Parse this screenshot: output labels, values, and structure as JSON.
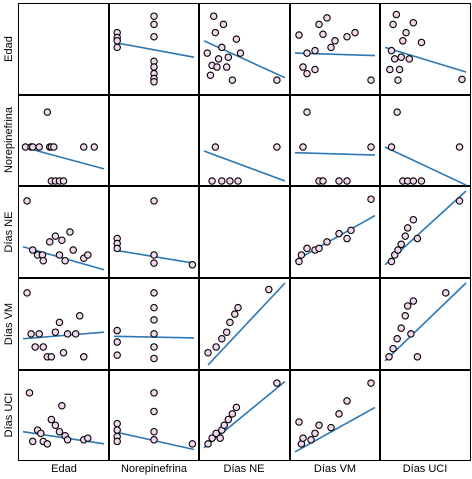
{
  "chart_data": {
    "type": "scatter",
    "variables": [
      "Edad",
      "Norepinefrina",
      "Días NE",
      "Días VM",
      "Días UCI"
    ],
    "colors": {
      "point_fill": "#f2d7ee",
      "point_stroke": "#000000",
      "line": "#2b77b4",
      "border": "#000000"
    },
    "grid": false,
    "regression_lines": true,
    "panels": [
      {
        "row": 0,
        "col": 1,
        "points": [
          [
            0.04,
            0.3
          ],
          [
            0.04,
            0.36
          ],
          [
            0.04,
            0.4
          ],
          [
            0.04,
            0.48
          ],
          [
            0.5,
            0.1
          ],
          [
            0.5,
            0.2
          ],
          [
            0.5,
            0.35
          ],
          [
            0.5,
            0.65
          ],
          [
            0.5,
            0.72
          ],
          [
            0.5,
            0.8
          ],
          [
            0.5,
            0.86
          ],
          [
            0.5,
            0.9
          ]
        ],
        "line": [
          [
            0,
            0.42
          ],
          [
            1,
            0.6
          ]
        ]
      },
      {
        "row": 0,
        "col": 2,
        "points": [
          [
            0.04,
            0.55
          ],
          [
            0.08,
            0.82
          ],
          [
            0.1,
            0.7
          ],
          [
            0.12,
            0.1
          ],
          [
            0.14,
            0.3
          ],
          [
            0.16,
            0.72
          ],
          [
            0.18,
            0.62
          ],
          [
            0.22,
            0.48
          ],
          [
            0.24,
            0.2
          ],
          [
            0.28,
            0.72
          ],
          [
            0.3,
            0.6
          ],
          [
            0.35,
            0.88
          ],
          [
            0.4,
            0.38
          ],
          [
            0.45,
            0.55
          ],
          [
            0.9,
            0.88
          ]
        ],
        "line": [
          [
            0,
            0.4
          ],
          [
            1,
            0.85
          ]
        ]
      },
      {
        "row": 0,
        "col": 3,
        "points": [
          [
            0.05,
            0.33
          ],
          [
            0.1,
            0.72
          ],
          [
            0.15,
            0.55
          ],
          [
            0.15,
            0.8
          ],
          [
            0.25,
            0.52
          ],
          [
            0.25,
            0.75
          ],
          [
            0.3,
            0.2
          ],
          [
            0.35,
            0.32
          ],
          [
            0.4,
            0.12
          ],
          [
            0.45,
            0.48
          ],
          [
            0.5,
            0.4
          ],
          [
            0.65,
            0.35
          ],
          [
            0.75,
            0.3
          ],
          [
            0.95,
            0.88
          ]
        ],
        "line": [
          [
            0,
            0.55
          ],
          [
            1,
            0.58
          ]
        ]
      },
      {
        "row": 0,
        "col": 4,
        "points": [
          [
            0.06,
            0.75
          ],
          [
            0.08,
            0.52
          ],
          [
            0.1,
            0.2
          ],
          [
            0.12,
            0.62
          ],
          [
            0.14,
            0.08
          ],
          [
            0.16,
            0.88
          ],
          [
            0.18,
            0.75
          ],
          [
            0.2,
            0.6
          ],
          [
            0.22,
            0.4
          ],
          [
            0.26,
            0.3
          ],
          [
            0.3,
            0.62
          ],
          [
            0.35,
            0.18
          ],
          [
            0.45,
            0.42
          ],
          [
            0.95,
            0.87
          ]
        ],
        "line": [
          [
            0,
            0.48
          ],
          [
            1,
            0.78
          ]
        ]
      },
      {
        "row": 1,
        "col": 0,
        "points": [
          [
            0.03,
            0.58
          ],
          [
            0.1,
            0.58
          ],
          [
            0.12,
            0.58
          ],
          [
            0.2,
            0.58
          ],
          [
            0.3,
            0.15
          ],
          [
            0.33,
            0.58
          ],
          [
            0.35,
            0.58
          ],
          [
            0.38,
            0.58
          ],
          [
            0.35,
            1.0
          ],
          [
            0.4,
            1.0
          ],
          [
            0.45,
            1.0
          ],
          [
            0.5,
            1.0
          ],
          [
            0.75,
            0.58
          ],
          [
            0.88,
            0.58
          ]
        ],
        "line": [
          [
            0,
            0.58
          ],
          [
            1,
            0.85
          ]
        ]
      },
      {
        "row": 1,
        "col": 2,
        "points": [
          [
            0.1,
            1.0
          ],
          [
            0.14,
            0.58
          ],
          [
            0.22,
            1.0
          ],
          [
            0.32,
            1.0
          ],
          [
            0.42,
            1.0
          ],
          [
            0.9,
            0.58
          ]
        ],
        "line": [
          [
            0,
            0.63
          ],
          [
            1,
            1.0
          ]
        ]
      },
      {
        "row": 1,
        "col": 3,
        "points": [
          [
            0.1,
            0.58
          ],
          [
            0.15,
            0.15
          ],
          [
            0.3,
            1.0
          ],
          [
            0.35,
            1.0
          ],
          [
            0.55,
            1.0
          ],
          [
            0.65,
            1.0
          ],
          [
            0.95,
            0.58
          ]
        ],
        "line": [
          [
            0,
            0.65
          ],
          [
            1,
            0.68
          ]
        ]
      },
      {
        "row": 1,
        "col": 4,
        "points": [
          [
            0.08,
            0.58
          ],
          [
            0.15,
            0.15
          ],
          [
            0.22,
            1.0
          ],
          [
            0.28,
            1.0
          ],
          [
            0.35,
            1.0
          ],
          [
            0.45,
            1.0
          ],
          [
            0.92,
            0.58
          ]
        ],
        "line": [
          [
            0,
            0.58
          ],
          [
            1,
            1.05
          ]
        ]
      },
      {
        "row": 2,
        "col": 0,
        "points": [
          [
            0.05,
            0.12
          ],
          [
            0.12,
            0.72
          ],
          [
            0.18,
            0.78
          ],
          [
            0.24,
            0.78
          ],
          [
            0.33,
            0.62
          ],
          [
            0.4,
            0.55
          ],
          [
            0.45,
            0.78
          ],
          [
            0.48,
            0.6
          ],
          [
            0.52,
            0.85
          ],
          [
            0.58,
            0.5
          ],
          [
            0.62,
            0.72
          ],
          [
            0.75,
            0.82
          ],
          [
            0.8,
            0.78
          ],
          [
            0.25,
            0.85
          ]
        ],
        "line": [
          [
            0,
            0.68
          ],
          [
            1,
            0.96
          ]
        ]
      },
      {
        "row": 2,
        "col": 1,
        "points": [
          [
            0.04,
            0.58
          ],
          [
            0.04,
            0.64
          ],
          [
            0.04,
            0.7
          ],
          [
            0.5,
            0.12
          ],
          [
            0.5,
            0.78
          ],
          [
            0.5,
            0.88
          ],
          [
            0.98,
            0.9
          ]
        ],
        "line": [
          [
            0,
            0.72
          ],
          [
            1,
            0.88
          ]
        ]
      },
      {
        "row": 2,
        "col": 3,
        "points": [
          [
            0.05,
            0.86
          ],
          [
            0.08,
            0.78
          ],
          [
            0.15,
            0.7
          ],
          [
            0.25,
            0.72
          ],
          [
            0.3,
            0.7
          ],
          [
            0.4,
            0.62
          ],
          [
            0.55,
            0.52
          ],
          [
            0.65,
            0.58
          ],
          [
            0.7,
            0.48
          ],
          [
            0.95,
            0.1
          ]
        ],
        "line": [
          [
            0,
            0.85
          ],
          [
            1,
            0.3
          ]
        ]
      },
      {
        "row": 2,
        "col": 4,
        "points": [
          [
            0.08,
            0.86
          ],
          [
            0.12,
            0.78
          ],
          [
            0.16,
            0.72
          ],
          [
            0.2,
            0.65
          ],
          [
            0.25,
            0.55
          ],
          [
            0.28,
            0.45
          ],
          [
            0.35,
            0.35
          ],
          [
            0.4,
            0.58
          ],
          [
            0.92,
            0.12
          ]
        ],
        "line": [
          [
            0,
            0.9
          ],
          [
            1,
            0.0
          ]
        ]
      },
      {
        "row": 3,
        "col": 0,
        "points": [
          [
            0.05,
            0.12
          ],
          [
            0.1,
            0.62
          ],
          [
            0.15,
            0.78
          ],
          [
            0.2,
            0.62
          ],
          [
            0.25,
            0.78
          ],
          [
            0.3,
            0.9
          ],
          [
            0.35,
            0.9
          ],
          [
            0.4,
            0.6
          ],
          [
            0.45,
            0.48
          ],
          [
            0.5,
            0.85
          ],
          [
            0.55,
            0.62
          ],
          [
            0.65,
            0.62
          ],
          [
            0.7,
            0.4
          ],
          [
            0.75,
            0.9
          ]
        ],
        "line": [
          [
            0,
            0.68
          ],
          [
            1,
            0.6
          ]
        ]
      },
      {
        "row": 3,
        "col": 1,
        "points": [
          [
            0.04,
            0.58
          ],
          [
            0.04,
            0.72
          ],
          [
            0.04,
            0.88
          ],
          [
            0.5,
            0.12
          ],
          [
            0.5,
            0.3
          ],
          [
            0.5,
            0.45
          ],
          [
            0.5,
            0.62
          ],
          [
            0.5,
            0.78
          ],
          [
            0.5,
            0.92
          ]
        ],
        "line": [
          [
            0,
            0.65
          ],
          [
            1,
            0.67
          ]
        ]
      },
      {
        "row": 3,
        "col": 2,
        "points": [
          [
            0.05,
            0.85
          ],
          [
            0.15,
            0.78
          ],
          [
            0.22,
            0.68
          ],
          [
            0.28,
            0.6
          ],
          [
            0.32,
            0.48
          ],
          [
            0.38,
            0.38
          ],
          [
            0.42,
            0.3
          ],
          [
            0.8,
            0.08
          ]
        ],
        "line": [
          [
            0.05,
            1.0
          ],
          [
            1,
            0.0
          ]
        ]
      },
      {
        "row": 3,
        "col": 4,
        "points": [
          [
            0.05,
            0.9
          ],
          [
            0.1,
            0.8
          ],
          [
            0.15,
            0.68
          ],
          [
            0.2,
            0.55
          ],
          [
            0.25,
            0.4
          ],
          [
            0.28,
            0.28
          ],
          [
            0.32,
            0.62
          ],
          [
            0.35,
            0.22
          ],
          [
            0.4,
            0.9
          ],
          [
            0.75,
            0.12
          ]
        ],
        "line": [
          [
            0,
            0.95
          ],
          [
            1,
            0.0
          ]
        ]
      },
      {
        "row": 4,
        "col": 0,
        "points": [
          [
            0.08,
            0.22
          ],
          [
            0.12,
            0.82
          ],
          [
            0.18,
            0.68
          ],
          [
            0.22,
            0.72
          ],
          [
            0.25,
            0.82
          ],
          [
            0.3,
            0.85
          ],
          [
            0.35,
            0.55
          ],
          [
            0.4,
            0.62
          ],
          [
            0.45,
            0.7
          ],
          [
            0.48,
            0.38
          ],
          [
            0.52,
            0.75
          ],
          [
            0.55,
            0.8
          ],
          [
            0.75,
            0.8
          ],
          [
            0.8,
            0.78
          ]
        ],
        "line": [
          [
            0,
            0.7
          ],
          [
            1,
            0.85
          ]
        ]
      },
      {
        "row": 4,
        "col": 1,
        "points": [
          [
            0.04,
            0.6
          ],
          [
            0.04,
            0.68
          ],
          [
            0.04,
            0.76
          ],
          [
            0.04,
            0.82
          ],
          [
            0.5,
            0.22
          ],
          [
            0.5,
            0.45
          ],
          [
            0.5,
            0.7
          ],
          [
            0.5,
            0.8
          ],
          [
            0.98,
            0.85
          ]
        ],
        "line": [
          [
            0,
            0.7
          ],
          [
            1,
            0.92
          ]
        ]
      },
      {
        "row": 4,
        "col": 2,
        "points": [
          [
            0.05,
            0.85
          ],
          [
            0.1,
            0.78
          ],
          [
            0.15,
            0.72
          ],
          [
            0.2,
            0.78
          ],
          [
            0.22,
            0.68
          ],
          [
            0.25,
            0.62
          ],
          [
            0.3,
            0.55
          ],
          [
            0.35,
            0.48
          ],
          [
            0.4,
            0.4
          ],
          [
            0.9,
            0.1
          ]
        ],
        "line": [
          [
            0,
            0.9
          ],
          [
            1,
            0.08
          ]
        ]
      },
      {
        "row": 4,
        "col": 3,
        "points": [
          [
            0.05,
            0.58
          ],
          [
            0.08,
            0.85
          ],
          [
            0.1,
            0.78
          ],
          [
            0.2,
            0.8
          ],
          [
            0.25,
            0.72
          ],
          [
            0.3,
            0.62
          ],
          [
            0.45,
            0.65
          ],
          [
            0.55,
            0.48
          ],
          [
            0.65,
            0.32
          ],
          [
            0.95,
            0.1
          ]
        ],
        "line": [
          [
            0,
            0.95
          ],
          [
            1,
            0.4
          ]
        ]
      }
    ]
  }
}
